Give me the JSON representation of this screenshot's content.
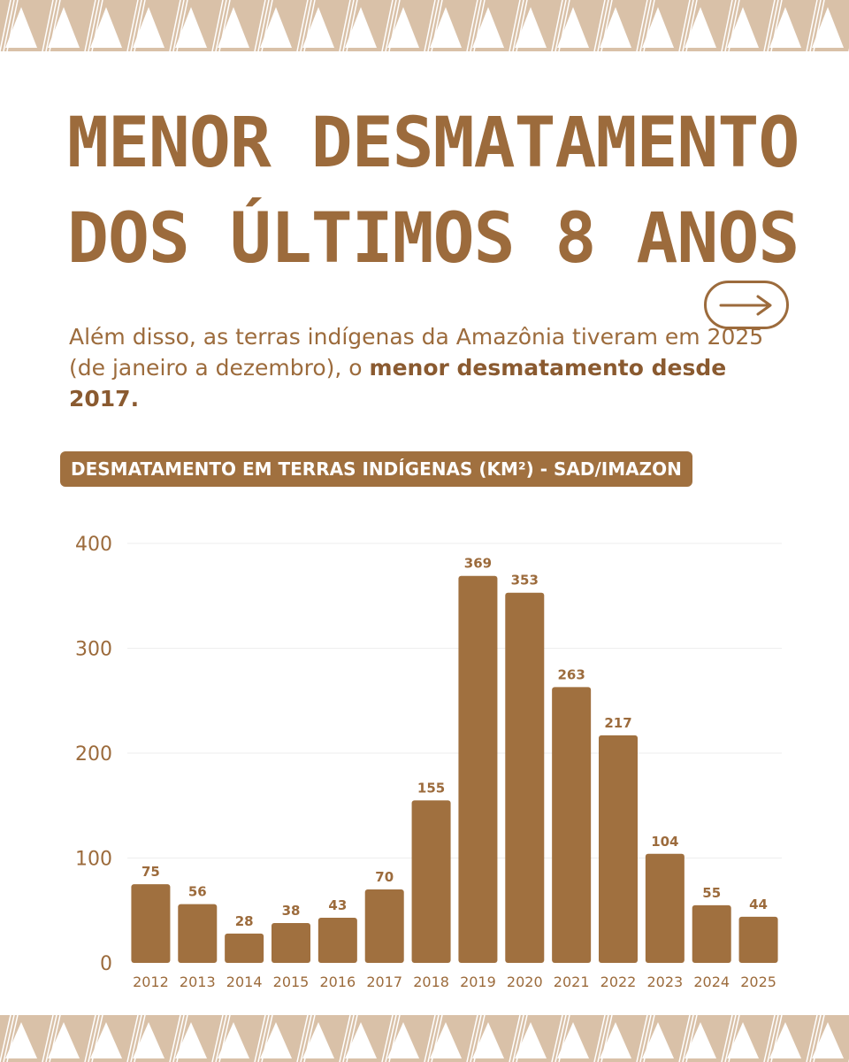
{
  "title": {
    "line1": "MENOR DESMATAMENTO",
    "line2": "DOS ÚLTIMOS 8 ANOS"
  },
  "subtitle": {
    "text": "Além disso, as terras indígenas da Amazônia tiveram em 2025 (de janeiro a dezembro), o ",
    "bold": "menor desmatamento desde 2017."
  },
  "arrow_button": {
    "icon": "arrow-right-icon"
  },
  "colors": {
    "brand": "#9c6b3c",
    "bar": "#a0703f",
    "border": "#d9c1a8",
    "gridline": "#eeeeee"
  },
  "chart_data": {
    "type": "bar",
    "title": "DESMATAMENTO EM TERRAS INDÍGENAS (KM²) - SAD/IMAZON",
    "xlabel": "",
    "ylabel": "",
    "categories": [
      "2012",
      "2013",
      "2014",
      "2015",
      "2016",
      "2017",
      "2018",
      "2019",
      "2020",
      "2021",
      "2022",
      "2023",
      "2024",
      "2025"
    ],
    "values": [
      75,
      56,
      28,
      38,
      43,
      70,
      155,
      369,
      353,
      263,
      217,
      104,
      55,
      44
    ],
    "ylim": [
      0,
      400
    ],
    "yticks": [
      0,
      100,
      200,
      300,
      400
    ],
    "grid": true,
    "data_labels": true
  }
}
